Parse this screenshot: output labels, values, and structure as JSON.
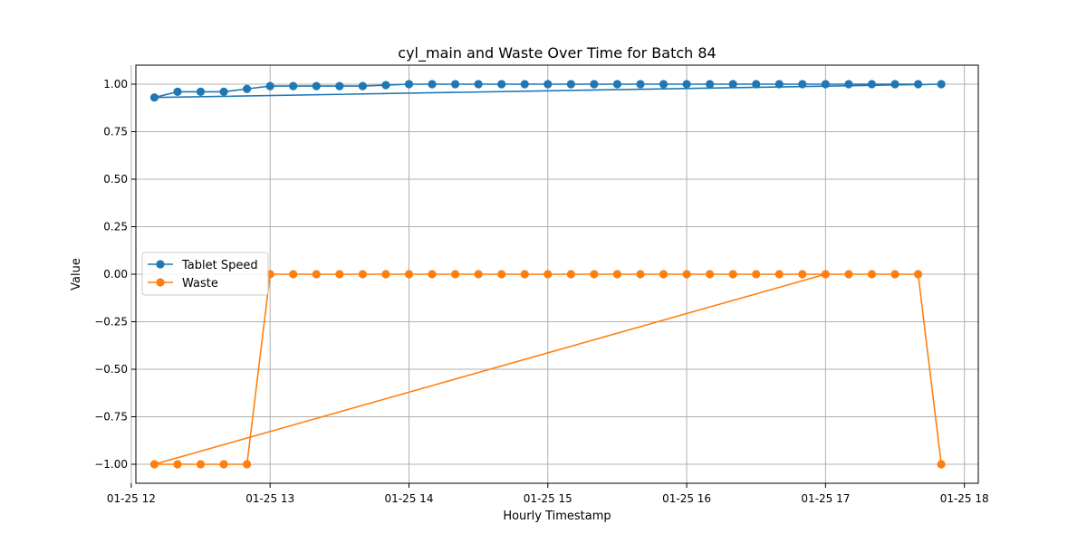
{
  "chart_data": {
    "type": "line",
    "title": "cyl_main and Waste Over Time for Batch 84",
    "xlabel": "Hourly Timestamp",
    "ylabel": "Value",
    "xlim": [
      12.0333,
      18.1
    ],
    "ylim": [
      -1.1,
      1.1
    ],
    "grid": true,
    "legend_position": "center-left",
    "x_ticks": [
      {
        "value": 12,
        "label": "01-25 12"
      },
      {
        "value": 13,
        "label": "01-25 13"
      },
      {
        "value": 14,
        "label": "01-25 14"
      },
      {
        "value": 15,
        "label": "01-25 15"
      },
      {
        "value": 16,
        "label": "01-25 16"
      },
      {
        "value": 17,
        "label": "01-25 17"
      },
      {
        "value": 18,
        "label": "01-25 18"
      }
    ],
    "y_ticks": [
      {
        "value": 1.0,
        "label": "1.00"
      },
      {
        "value": 0.75,
        "label": "0.75"
      },
      {
        "value": 0.5,
        "label": "0.50"
      },
      {
        "value": 0.25,
        "label": "0.25"
      },
      {
        "value": 0.0,
        "label": "0.00"
      },
      {
        "value": -0.25,
        "label": "−0.25"
      },
      {
        "value": -0.5,
        "label": "−0.50"
      },
      {
        "value": -0.75,
        "label": "−0.75"
      },
      {
        "value": -1.0,
        "label": "−1.00"
      }
    ],
    "series": [
      {
        "name": "Tablet Speed",
        "color": "#1f77b4",
        "points": [
          [
            17.8333,
            1.0
          ],
          [
            12.1667,
            0.93
          ],
          [
            12.3333,
            0.96
          ],
          [
            12.5,
            0.96
          ],
          [
            12.6667,
            0.96
          ],
          [
            12.8333,
            0.975
          ],
          [
            13.0,
            0.99
          ],
          [
            13.1667,
            0.99
          ],
          [
            13.3333,
            0.99
          ],
          [
            13.5,
            0.99
          ],
          [
            13.6667,
            0.99
          ],
          [
            13.8333,
            0.995
          ],
          [
            14.0,
            1.0
          ],
          [
            14.1667,
            1.0
          ],
          [
            14.3333,
            1.0
          ],
          [
            14.5,
            1.0
          ],
          [
            14.6667,
            1.0
          ],
          [
            14.8333,
            1.0
          ],
          [
            15.0,
            1.0
          ],
          [
            15.1667,
            1.0
          ],
          [
            15.3333,
            1.0
          ],
          [
            15.5,
            1.0
          ],
          [
            15.6667,
            1.0
          ],
          [
            15.8333,
            1.0
          ],
          [
            16.0,
            1.0
          ],
          [
            16.1667,
            1.0
          ],
          [
            16.3333,
            1.0
          ],
          [
            16.5,
            1.0
          ],
          [
            16.6667,
            1.0
          ],
          [
            16.8333,
            1.0
          ],
          [
            17.0,
            1.0
          ],
          [
            17.1667,
            1.0
          ],
          [
            17.3333,
            1.0
          ],
          [
            17.5,
            1.0
          ],
          [
            17.6667,
            1.0
          ]
        ]
      },
      {
        "name": "Waste",
        "color": "#ff7f0e",
        "points": [
          [
            17.0,
            0.0
          ],
          [
            12.1667,
            -1.0
          ],
          [
            12.3333,
            -1.0
          ],
          [
            12.5,
            -1.0
          ],
          [
            12.6667,
            -1.0
          ],
          [
            12.8333,
            -1.0
          ],
          [
            13.0,
            0.0
          ],
          [
            13.1667,
            0.0
          ],
          [
            13.3333,
            0.0
          ],
          [
            13.5,
            0.0
          ],
          [
            13.6667,
            0.0
          ],
          [
            13.8333,
            0.0
          ],
          [
            14.0,
            0.0
          ],
          [
            14.1667,
            0.0
          ],
          [
            14.3333,
            0.0
          ],
          [
            14.5,
            0.0
          ],
          [
            14.6667,
            0.0
          ],
          [
            14.8333,
            0.0
          ],
          [
            15.0,
            0.0
          ],
          [
            15.1667,
            0.0
          ],
          [
            15.3333,
            0.0
          ],
          [
            15.5,
            0.0
          ],
          [
            15.6667,
            0.0
          ],
          [
            15.8333,
            0.0
          ],
          [
            16.0,
            0.0
          ],
          [
            16.1667,
            0.0
          ],
          [
            16.3333,
            0.0
          ],
          [
            16.5,
            0.0
          ],
          [
            16.6667,
            0.0
          ],
          [
            16.8333,
            0.0
          ],
          [
            17.1667,
            0.0
          ],
          [
            17.3333,
            0.0
          ],
          [
            17.5,
            0.0
          ],
          [
            17.6667,
            0.0
          ],
          [
            17.8333,
            -1.0
          ]
        ]
      }
    ]
  }
}
